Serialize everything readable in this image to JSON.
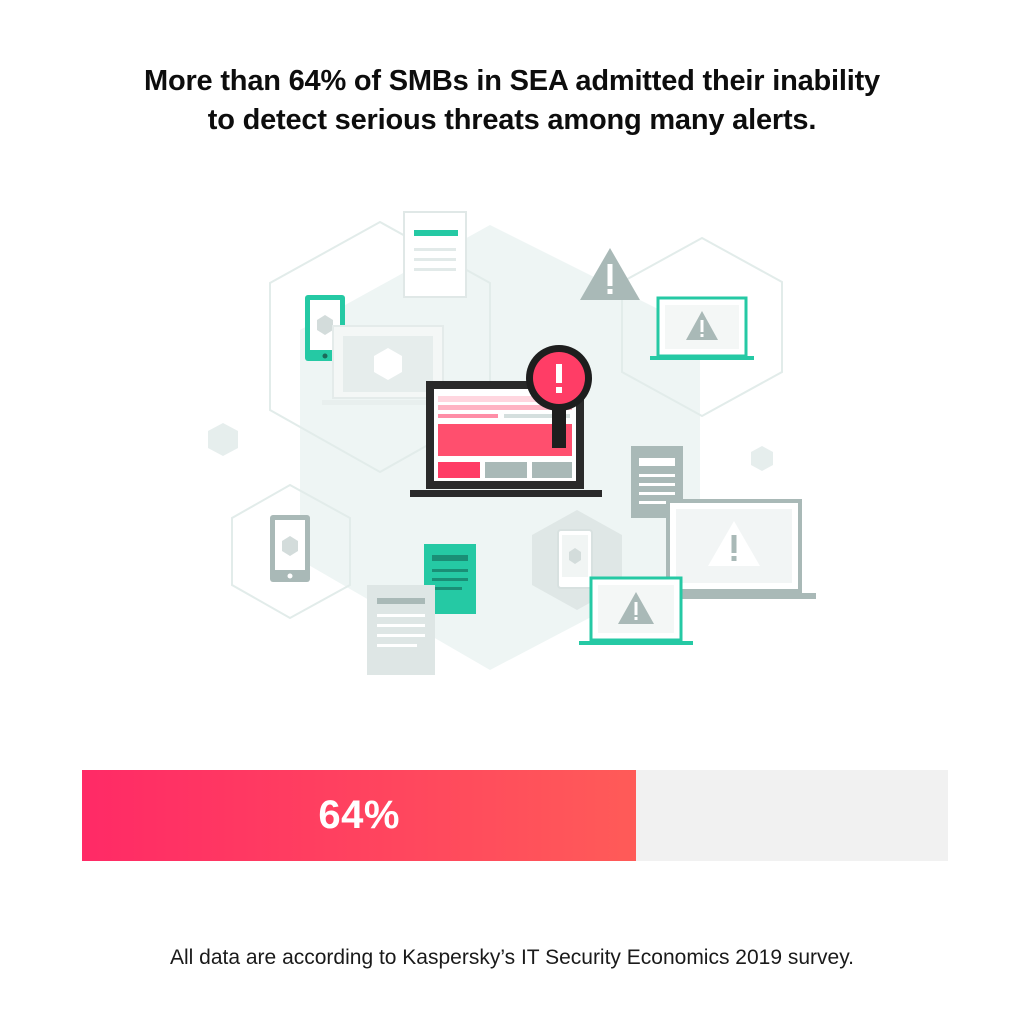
{
  "headline": {
    "line1": "More than 64% of SMBs in SEA admitted their inability",
    "line2": "to detect serious threats among many alerts."
  },
  "chart_data": {
    "type": "bar",
    "orientation": "horizontal",
    "categories": [
      ""
    ],
    "values": [
      64
    ],
    "xlim": [
      0,
      100
    ],
    "value_label": "64%"
  },
  "footnote": "All data are according to Kaspersky’s IT Security Economics 2019 survey.",
  "colors": {
    "accent": "#ff2a66",
    "accent_end": "#ff5b58",
    "teal": "#25c9a4",
    "gray": "#a9b9b7",
    "track": "#f1f1f1"
  },
  "illustration": {
    "icons": [
      "warning-icon",
      "laptop-icon",
      "magnifier-icon",
      "phone-icon",
      "document-icon",
      "hexagon-icon"
    ]
  }
}
